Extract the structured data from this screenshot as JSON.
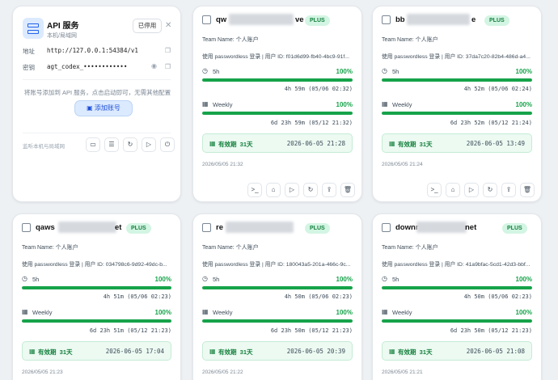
{
  "api": {
    "title": "API 服务",
    "subtitle": "本机/局域网",
    "disable_label": "已停用",
    "address_label": "地址",
    "address_value": "http://127.0.0.1:54384/v1",
    "key_label": "密钥",
    "key_value": "agt_codex_••••••••••••",
    "hint": "将账号添加到 API 服务，点击启动即可，无需其他配置",
    "add_label": "添加账号",
    "footer_label": "监听本机与局域网"
  },
  "labels": {
    "team": "Team Name: 个人账户",
    "five_h": "5h",
    "weekly": "Weekly",
    "valid": "有效期",
    "plus": "PLUS"
  },
  "accounts": [
    {
      "name_prefix": "qw",
      "name_suffix": "ve",
      "user_line": "使用 passwordless 登录 | 用户 ID: f01d6d99-fb40-4bc9-91f...",
      "five_h_pct": "100%",
      "five_h_fill": 1.0,
      "five_h_reset": "4h 59m (05/06 02:32)",
      "weekly_pct": "100%",
      "weekly_fill": 1.0,
      "weekly_reset": "6d 23h 59m (05/12 21:32)",
      "valid_days": "31天",
      "valid_date": "2026-06-05 21:28",
      "created": "2026/05/05 21:32"
    },
    {
      "name_prefix": "bb",
      "name_suffix": "e",
      "user_line": "使用 passwordless 登录 | 用户 ID: 37da7c20-82b4-486d-a4...",
      "five_h_pct": "100%",
      "five_h_fill": 1.0,
      "five_h_reset": "4h 52m (05/06 02:24)",
      "weekly_pct": "100%",
      "weekly_fill": 1.0,
      "weekly_reset": "6d 23h 52m (05/12 21:24)",
      "valid_days": "31天",
      "valid_date": "2026-06-05 13:49",
      "created": "2026/05/05 21:24"
    },
    {
      "name_prefix": "qaws",
      "name_suffix": "et",
      "user_line": "使用 passwordless 登录 | 用户 ID: 034798c6-9d92-49dc-b...",
      "five_h_pct": "100%",
      "five_h_fill": 1.0,
      "five_h_reset": "4h 51m (05/06 02:23)",
      "weekly_pct": "100%",
      "weekly_fill": 1.0,
      "weekly_reset": "6d 23h 51m (05/12 21:23)",
      "valid_days": "31天",
      "valid_date": "2026-06-05 17:04",
      "created": "2026/05/05 21:23"
    },
    {
      "name_prefix": "re",
      "name_suffix": "",
      "user_line": "使用 passwordless 登录 | 用户 ID: 180043a5-201a-466c-9c...",
      "five_h_pct": "100%",
      "five_h_fill": 1.0,
      "five_h_reset": "4h 50m (05/06 02:23)",
      "weekly_pct": "100%",
      "weekly_fill": 1.0,
      "weekly_reset": "6d 23h 50m (05/12 21:23)",
      "valid_days": "31天",
      "valid_date": "2026-06-05 20:39",
      "created": "2026/05/05 21:22"
    },
    {
      "name_prefix": "downr",
      "name_suffix": "net",
      "user_line": "使用 passwordless 登录 | 用户 ID: 41a9bfac-5cd1-42d3-bbf...",
      "five_h_pct": "100%",
      "five_h_fill": 1.0,
      "five_h_reset": "4h 50m (05/06 02:23)",
      "weekly_pct": "100%",
      "weekly_fill": 1.0,
      "weekly_reset": "6d 23h 50m (05/12 21:23)",
      "valid_days": "31天",
      "valid_date": "2026-06-05 21:08",
      "created": "2026/05/05 21:21"
    }
  ],
  "colors": {
    "accent_green": "#16a34a",
    "accent_blue": "#2563eb",
    "plus_bg": "#d3f5e3"
  }
}
